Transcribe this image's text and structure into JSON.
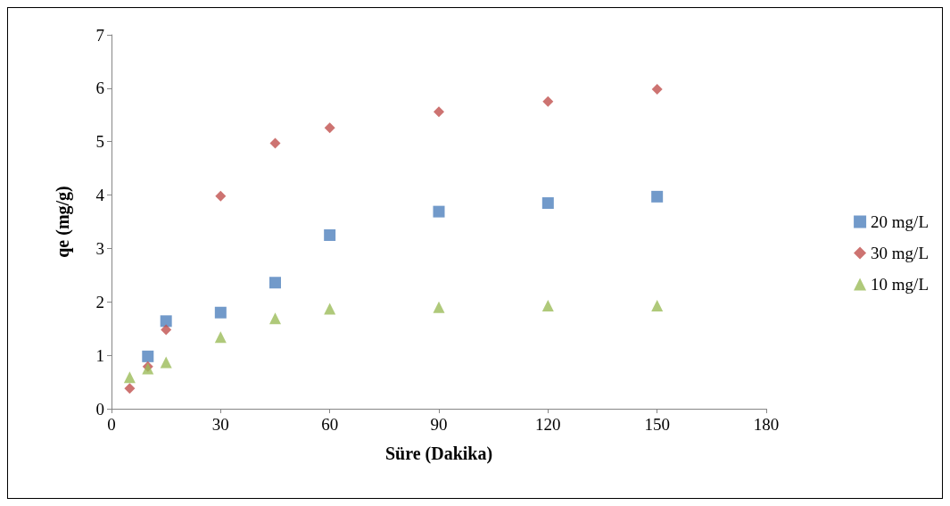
{
  "chart_data": {
    "type": "scatter",
    "xlabel": "Süre (Dakika)",
    "ylabel": "qe (mg/g)",
    "xlim": [
      0,
      180
    ],
    "xticks": [
      0,
      30,
      60,
      90,
      120,
      150,
      180
    ],
    "ylim": [
      0,
      7
    ],
    "yticks": [
      0,
      1,
      2,
      3,
      4,
      5,
      6,
      7
    ],
    "grid": false,
    "legend": "right",
    "series": [
      {
        "name": "20 mg/L",
        "color": "#4f81bd",
        "marker": "square",
        "x": [
          10,
          15,
          30,
          45,
          60,
          90,
          120,
          150
        ],
        "values": [
          0.98,
          1.64,
          1.8,
          2.36,
          3.25,
          3.69,
          3.85,
          3.97
        ]
      },
      {
        "name": "30 mg/L",
        "color": "#c0504d",
        "marker": "diamond",
        "x": [
          5,
          10,
          15,
          30,
          45,
          60,
          90,
          120,
          150
        ],
        "values": [
          0.38,
          0.79,
          1.48,
          3.98,
          4.97,
          5.26,
          5.56,
          5.75,
          5.98
        ]
      },
      {
        "name": "10 mg/L",
        "color": "#9bbb59",
        "marker": "triangle",
        "x": [
          5,
          10,
          15,
          30,
          45,
          60,
          90,
          120,
          150
        ],
        "values": [
          0.59,
          0.75,
          0.87,
          1.34,
          1.69,
          1.87,
          1.9,
          1.93,
          1.93
        ]
      }
    ]
  }
}
